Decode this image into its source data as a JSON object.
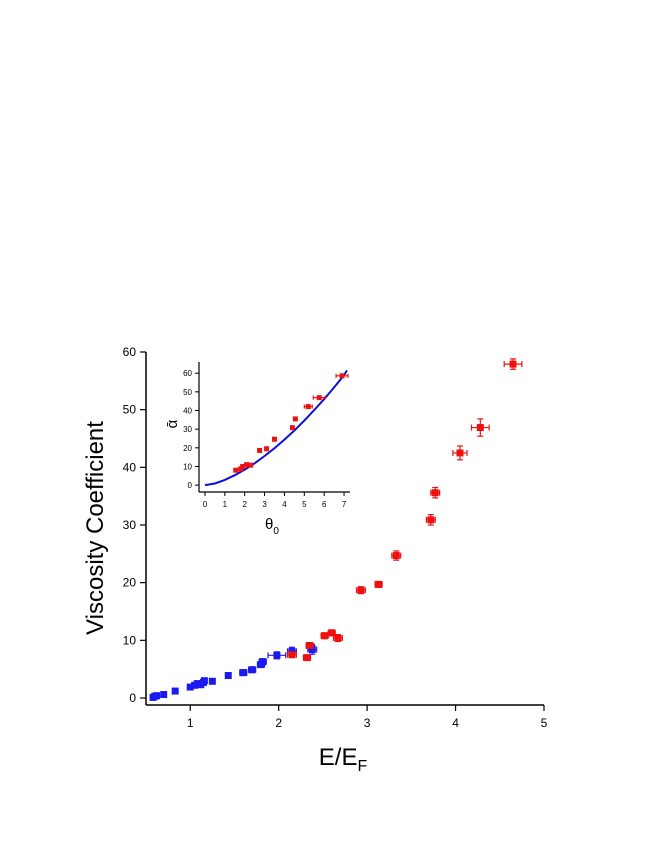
{
  "chart_data": {
    "type": "scatter",
    "main": {
      "xlabel": "E/E",
      "xlabel_sub": "F",
      "ylabel": "Viscosity Coefficient",
      "xlim": [
        0.5,
        5
      ],
      "ylim": [
        0,
        60
      ],
      "xticks": [
        1,
        2,
        3,
        4,
        5
      ],
      "yticks": [
        0,
        10,
        20,
        30,
        40,
        50,
        60
      ],
      "series": [
        {
          "color": "#1a1aee",
          "points": [
            {
              "x": 0.58,
              "y": 0.1,
              "xerr": 0.02,
              "yerr": 0.3
            },
            {
              "x": 0.6,
              "y": 0.3,
              "xerr": 0.02,
              "yerr": 0.3
            },
            {
              "x": 0.62,
              "y": 0.4,
              "xerr": 0.02,
              "yerr": 0.3
            },
            {
              "x": 0.7,
              "y": 0.6,
              "xerr": 0.02,
              "yerr": 0.3
            },
            {
              "x": 0.83,
              "y": 1.2,
              "xerr": 0.03,
              "yerr": 0.4
            },
            {
              "x": 1.0,
              "y": 1.9,
              "xerr": 0.03,
              "yerr": 0.4
            },
            {
              "x": 1.05,
              "y": 2.2,
              "xerr": 0.03,
              "yerr": 0.4
            },
            {
              "x": 1.08,
              "y": 2.5,
              "xerr": 0.03,
              "yerr": 0.4
            },
            {
              "x": 1.12,
              "y": 2.3,
              "xerr": 0.03,
              "yerr": 0.4
            },
            {
              "x": 1.15,
              "y": 2.7,
              "xerr": 0.03,
              "yerr": 0.4
            },
            {
              "x": 1.16,
              "y": 3.0,
              "xerr": 0.03,
              "yerr": 0.4
            },
            {
              "x": 1.25,
              "y": 2.9,
              "xerr": 0.03,
              "yerr": 0.4
            },
            {
              "x": 1.43,
              "y": 3.9,
              "xerr": 0.03,
              "yerr": 0.4
            },
            {
              "x": 1.6,
              "y": 4.4,
              "xerr": 0.04,
              "yerr": 0.5
            },
            {
              "x": 1.7,
              "y": 4.9,
              "xerr": 0.04,
              "yerr": 0.5
            },
            {
              "x": 1.8,
              "y": 5.8,
              "xerr": 0.04,
              "yerr": 0.5
            },
            {
              "x": 1.82,
              "y": 6.3,
              "xerr": 0.04,
              "yerr": 0.5
            },
            {
              "x": 1.98,
              "y": 7.4,
              "xerr": 0.1,
              "yerr": 0.6
            },
            {
              "x": 2.15,
              "y": 8.1,
              "xerr": 0.05,
              "yerr": 0.7
            },
            {
              "x": 2.38,
              "y": 8.4,
              "xerr": 0.05,
              "yerr": 0.8
            },
            {
              "x": 2.37,
              "y": 8.8,
              "xerr": 0.03,
              "yerr": 0.4
            }
          ]
        },
        {
          "color": "#ee1111",
          "points": [
            {
              "x": 2.15,
              "y": 7.5,
              "xerr": 0.05,
              "yerr": 0.4
            },
            {
              "x": 2.32,
              "y": 7.0,
              "xerr": 0.04,
              "yerr": 0.4
            },
            {
              "x": 2.35,
              "y": 9.1,
              "xerr": 0.04,
              "yerr": 0.5
            },
            {
              "x": 2.52,
              "y": 10.8,
              "xerr": 0.04,
              "yerr": 0.5
            },
            {
              "x": 2.6,
              "y": 11.3,
              "xerr": 0.04,
              "yerr": 0.5
            },
            {
              "x": 2.67,
              "y": 10.4,
              "xerr": 0.05,
              "yerr": 0.6
            },
            {
              "x": 2.93,
              "y": 18.7,
              "xerr": 0.05,
              "yerr": 0.6
            },
            {
              "x": 3.13,
              "y": 19.7,
              "xerr": 0.04,
              "yerr": 0.5
            },
            {
              "x": 3.33,
              "y": 24.7,
              "xerr": 0.05,
              "yerr": 0.8
            },
            {
              "x": 3.72,
              "y": 30.9,
              "xerr": 0.05,
              "yerr": 0.9
            },
            {
              "x": 3.77,
              "y": 35.6,
              "xerr": 0.05,
              "yerr": 0.9
            },
            {
              "x": 4.05,
              "y": 42.5,
              "xerr": 0.08,
              "yerr": 1.2
            },
            {
              "x": 4.28,
              "y": 46.9,
              "xerr": 0.1,
              "yerr": 1.5
            },
            {
              "x": 4.65,
              "y": 57.9,
              "xerr": 0.1,
              "yerr": 0.9
            }
          ]
        }
      ]
    },
    "inset": {
      "type": "scatter",
      "xlabel": "θ",
      "xlabel_sub": "0",
      "ylabel": "ᾱ",
      "xlim": [
        -0.3,
        7.3
      ],
      "ylim": [
        -1,
        66
      ],
      "xticks": [
        0,
        1,
        2,
        3,
        4,
        5,
        6,
        7
      ],
      "yticks": [
        0,
        10,
        20,
        30,
        40,
        50,
        60
      ],
      "fit_color": "#0a10dd",
      "fit_curve": {
        "x": [
          0,
          0.5,
          1,
          1.5,
          2,
          2.5,
          3,
          3.5,
          4,
          4.5,
          5,
          5.5,
          6,
          6.5,
          7,
          7.15
        ],
        "y": [
          0,
          0.9,
          2.8,
          5.3,
          8.3,
          11.7,
          15.6,
          19.8,
          24.4,
          29.3,
          34.6,
          40.2,
          46.1,
          52.4,
          58.9,
          61.5
        ]
      },
      "points_color": "#ee1111",
      "points": [
        {
          "x": 1.55,
          "y": 8.0,
          "xerr": 0.05
        },
        {
          "x": 1.8,
          "y": 8.7,
          "xerr": 0.05
        },
        {
          "x": 1.9,
          "y": 10.0,
          "xerr": 0.05
        },
        {
          "x": 2.1,
          "y": 11.0,
          "xerr": 0.05
        },
        {
          "x": 2.3,
          "y": 10.7,
          "xerr": 0.05
        },
        {
          "x": 2.75,
          "y": 18.6,
          "xerr": 0.05
        },
        {
          "x": 3.1,
          "y": 19.5,
          "xerr": 0.05
        },
        {
          "x": 3.5,
          "y": 24.6,
          "xerr": 0.05
        },
        {
          "x": 4.4,
          "y": 30.8,
          "xerr": 0.05
        },
        {
          "x": 4.55,
          "y": 35.5,
          "xerr": 0.05
        },
        {
          "x": 5.2,
          "y": 42.1,
          "xerr": 0.2
        },
        {
          "x": 5.75,
          "y": 46.9,
          "xerr": 0.3
        },
        {
          "x": 6.9,
          "y": 58.6,
          "xerr": 0.3
        }
      ]
    }
  }
}
